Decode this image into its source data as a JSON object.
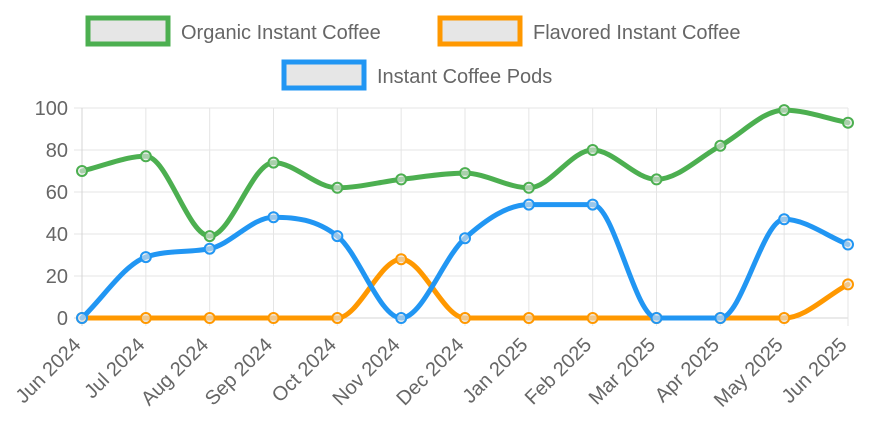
{
  "chart_data": {
    "type": "line",
    "title": "",
    "xlabel": "",
    "ylabel": "",
    "categories": [
      "Jun 2024",
      "Jul 2024",
      "Aug 2024",
      "Sep 2024",
      "Oct 2024",
      "Nov 2024",
      "Dec 2024",
      "Jan 2025",
      "Feb 2025",
      "Mar 2025",
      "Apr 2025",
      "May 2025",
      "Jun 2025"
    ],
    "ylim": [
      0,
      100
    ],
    "yticks": [
      "0",
      "20",
      "40",
      "60",
      "80",
      "100"
    ],
    "grid": true,
    "legend_position": "top-center",
    "series": [
      {
        "name": "Organic Instant Coffee",
        "color": "#4caf50",
        "values": [
          70,
          77,
          39,
          74,
          62,
          66,
          69,
          62,
          80,
          66,
          82,
          99,
          93
        ]
      },
      {
        "name": "Flavored Instant Coffee",
        "color": "#ff9800",
        "values": [
          0,
          0,
          0,
          0,
          0,
          28,
          0,
          0,
          0,
          0,
          0,
          0,
          16
        ]
      },
      {
        "name": "Instant Coffee Pods",
        "color": "#2196f3",
        "values": [
          0,
          29,
          33,
          48,
          39,
          0,
          38,
          54,
          54,
          0,
          0,
          47,
          35
        ]
      }
    ]
  }
}
